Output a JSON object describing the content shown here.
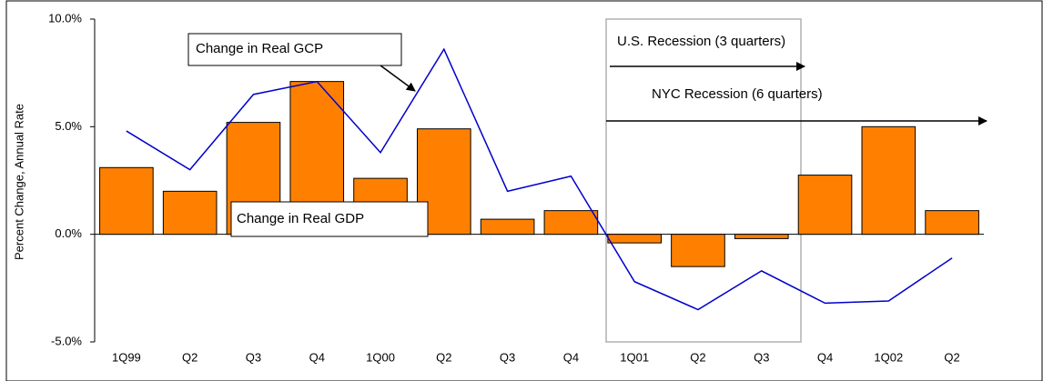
{
  "chart_data": {
    "type": "bar",
    "y_label": "Percent Change, Annual Rate",
    "categories": [
      "1Q99",
      "Q2",
      "Q3",
      "Q4",
      "1Q00",
      "Q2",
      "Q3",
      "Q4",
      "1Q01",
      "Q2",
      "Q3",
      "Q4",
      "1Q02",
      "Q2"
    ],
    "series": [
      {
        "name": "Change in Real GDP",
        "type": "bar",
        "color": "#ff8000",
        "values": [
          3.1,
          2.0,
          5.2,
          7.1,
          2.6,
          4.9,
          0.7,
          1.1,
          -0.4,
          -1.5,
          -0.2,
          2.75,
          5.0,
          1.1
        ]
      },
      {
        "name": "Change in Real GCP",
        "type": "line",
        "color": "#0000cc",
        "values": [
          4.8,
          3.0,
          6.5,
          7.1,
          3.8,
          8.6,
          2.0,
          2.7,
          -2.2,
          -3.5,
          -1.7,
          -3.2,
          -3.1,
          -1.1
        ]
      }
    ],
    "annotations": [
      "U.S. Recession (3 quarters)",
      "NYC Recession (6 quarters)"
    ],
    "ylim": [
      -5,
      10
    ],
    "yticks": [
      {
        "value": -5,
        "label": "-5.0%"
      },
      {
        "value": 0,
        "label": "0.0%"
      },
      {
        "value": 5,
        "label": "5.0%"
      },
      {
        "value": 10,
        "label": "10.0%"
      }
    ]
  }
}
